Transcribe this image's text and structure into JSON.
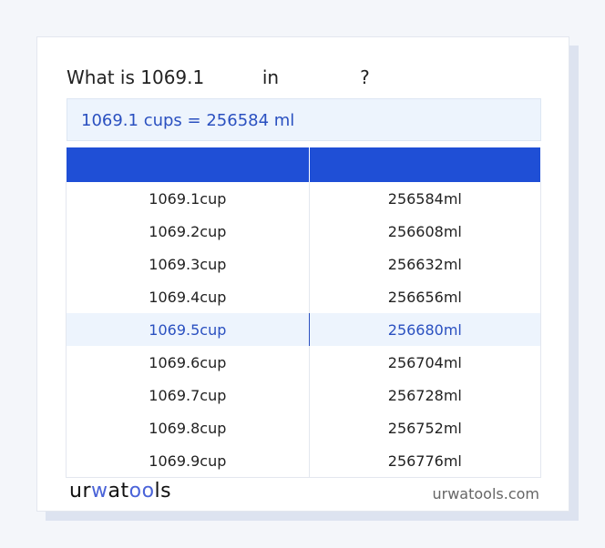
{
  "title": {
    "prefix": "What is 1069.1",
    "mid": "in",
    "suffix": "?"
  },
  "result": "1069.1 cups = 256584 ml",
  "table": {
    "headers": [
      "",
      ""
    ],
    "highlight_index": 4,
    "rows": [
      [
        "1069.1cup",
        "256584ml"
      ],
      [
        "1069.2cup",
        "256608ml"
      ],
      [
        "1069.3cup",
        "256632ml"
      ],
      [
        "1069.4cup",
        "256656ml"
      ],
      [
        "1069.5cup",
        "256680ml"
      ],
      [
        "1069.6cup",
        "256704ml"
      ],
      [
        "1069.7cup",
        "256728ml"
      ],
      [
        "1069.8cup",
        "256752ml"
      ],
      [
        "1069.9cup",
        "256776ml"
      ]
    ]
  },
  "footer": {
    "logo": "urwatools",
    "site": "urwatools.com"
  },
  "colors": {
    "accent": "#1f4fd6",
    "highlight_bg": "#edf4fd",
    "highlight_text": "#2a50c0"
  }
}
